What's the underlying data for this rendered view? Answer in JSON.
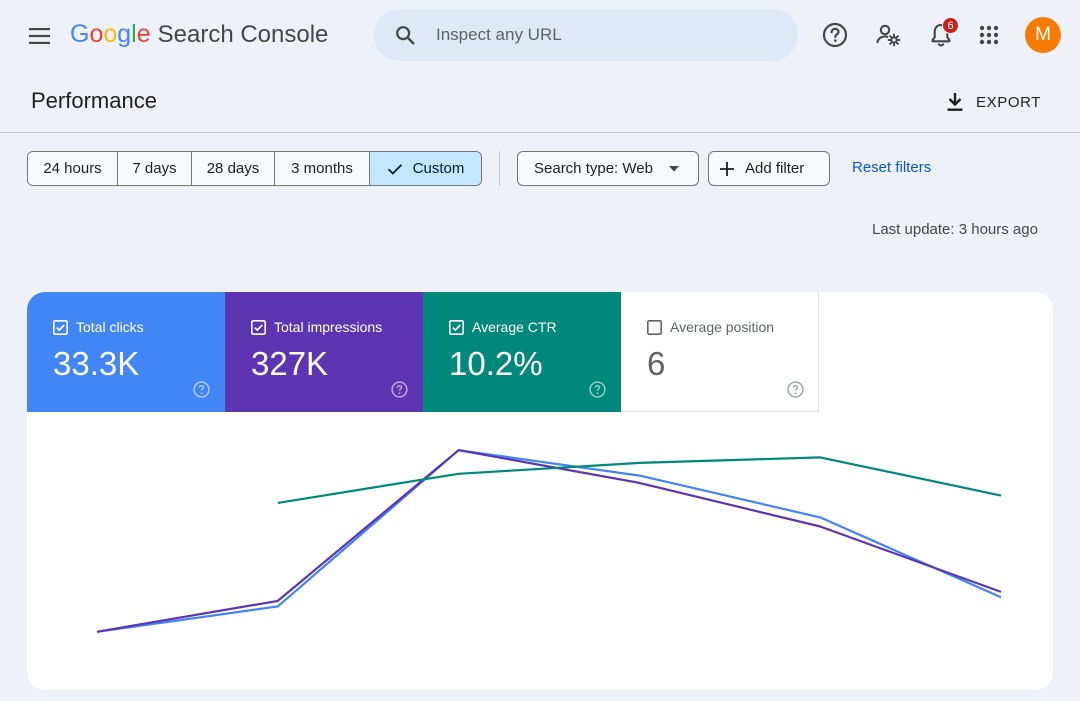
{
  "header": {
    "brand_google": [
      "G",
      "o",
      "o",
      "g",
      "l",
      "e"
    ],
    "brand_colors": [
      "#4285f4",
      "#ea4335",
      "#fbbc05",
      "#4285f4",
      "#34a853",
      "#ea4335"
    ],
    "product": "Search Console",
    "search_placeholder": "Inspect any URL",
    "notification_count": "6",
    "avatar_initial": "M",
    "icons": [
      "menu-icon",
      "search-icon",
      "help-icon",
      "manage-users-icon",
      "notifications-icon",
      "apps-icon"
    ]
  },
  "page": {
    "title": "Performance",
    "export_label": "EXPORT"
  },
  "filters": {
    "ranges": [
      "24 hours",
      "7 days",
      "28 days",
      "3 months",
      "Custom"
    ],
    "active_range": "Custom",
    "search_type": "Search type: Web",
    "add_filter": "Add filter",
    "reset": "Reset filters",
    "last_update": "Last update: 3 hours ago"
  },
  "metrics": [
    {
      "label": "Total clicks",
      "value": "33.3K",
      "checked": true,
      "color": "#4285f4"
    },
    {
      "label": "Total impressions",
      "value": "327K",
      "checked": true,
      "color": "#5e35b1"
    },
    {
      "label": "Average CTR",
      "value": "10.2%",
      "checked": true,
      "color": "#00897b"
    },
    {
      "label": "Average position",
      "value": "6",
      "checked": false,
      "color": "#e8710a"
    }
  ],
  "chart_data": {
    "type": "line",
    "x": [
      1,
      2,
      3,
      4,
      5,
      6
    ],
    "series": [
      {
        "name": "Total clicks",
        "color": "#4285f4",
        "values": [
          0.0,
          0.14,
          1.0,
          0.86,
          0.63,
          0.19
        ]
      },
      {
        "name": "Total impressions",
        "color": "#5e35b1",
        "values": [
          0.0,
          0.17,
          1.0,
          0.82,
          0.58,
          0.22
        ]
      },
      {
        "name": "Average CTR",
        "color": "#00897b",
        "values": [
          null,
          0.71,
          0.87,
          0.93,
          0.96,
          0.75
        ]
      }
    ],
    "ylim": [
      -0.1,
      1.1
    ],
    "grid": false,
    "legend": "none"
  }
}
